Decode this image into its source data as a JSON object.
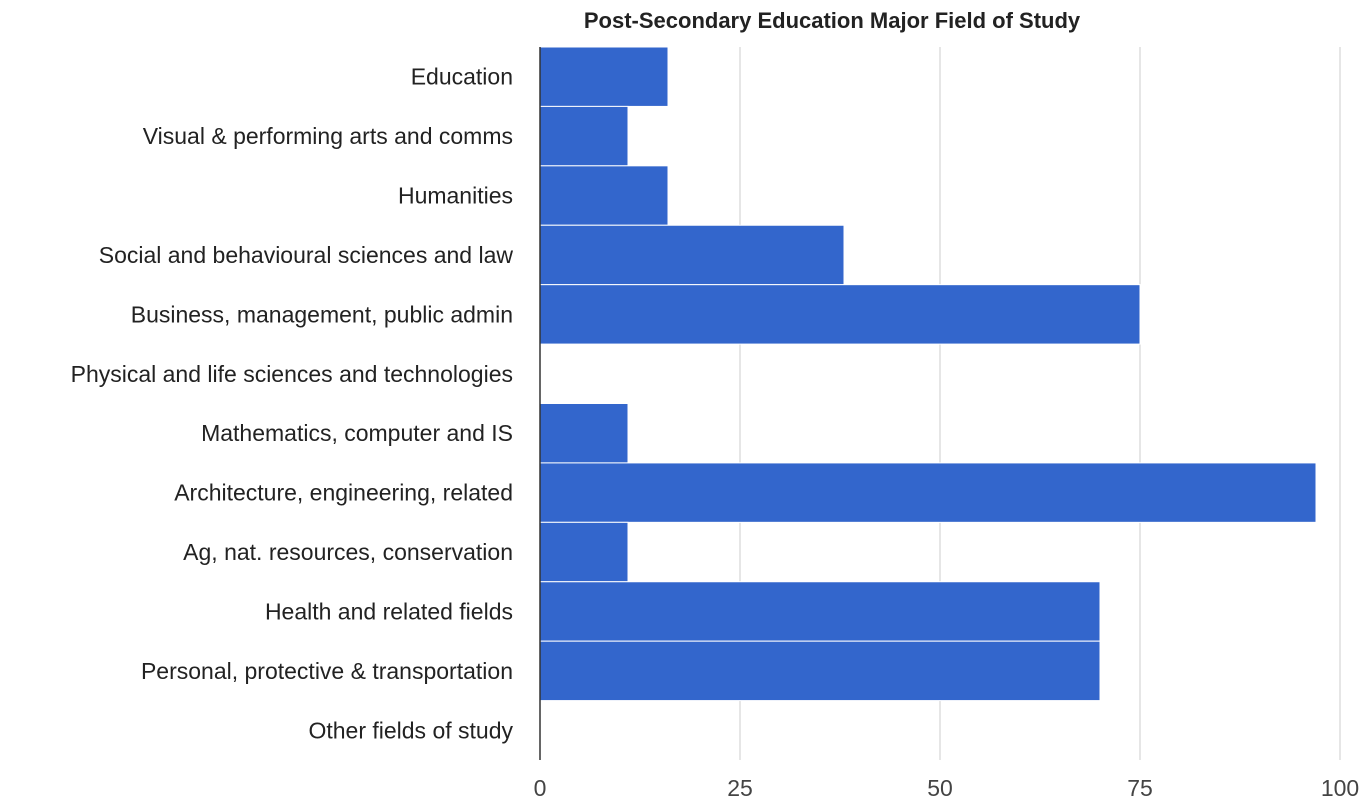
{
  "chart_data": {
    "type": "bar",
    "orientation": "horizontal",
    "title": "Post-Secondary Education Major Field of Study",
    "xlabel": "",
    "ylabel": "",
    "categories": [
      "Education",
      "Visual & performing arts and comms",
      "Humanities",
      "Social and behavioural sciences and law",
      "Business, management, public admin",
      "Physical and life sciences and technologies",
      "Mathematics, computer and IS",
      "Architecture, engineering, related",
      "Ag, nat. resources, conservation",
      "Health and related fields",
      "Personal, protective & transportation",
      "Other fields of study"
    ],
    "series": [
      {
        "values": [
          16,
          11,
          16,
          38,
          75,
          0,
          11,
          97,
          11,
          70,
          70,
          0
        ]
      }
    ],
    "xlim": [
      0,
      100
    ],
    "xticks": [
      "0",
      "25",
      "50",
      "75",
      "100"
    ],
    "grid": true,
    "legend": "none",
    "bar_color": "#3366cc"
  }
}
